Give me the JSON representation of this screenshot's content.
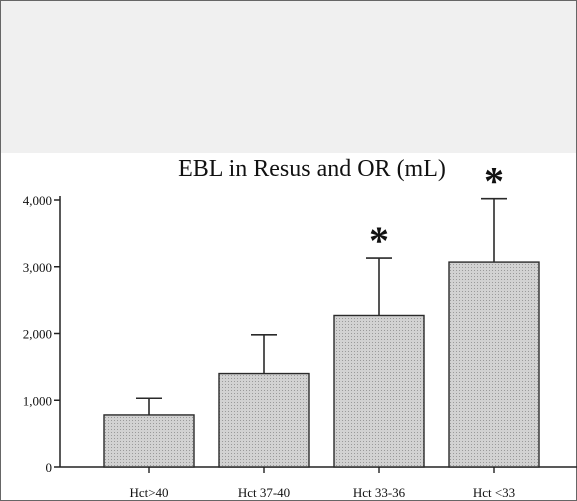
{
  "chart_data": {
    "type": "bar",
    "title": "EBL in Resus and OR (mL)",
    "xlabel": "",
    "ylabel": "",
    "categories": [
      "Hct>40",
      "Hct 37-40",
      "Hct 33-36",
      "Hct <33"
    ],
    "values": [
      780,
      1400,
      2270,
      3070
    ],
    "error_upper": [
      1030,
      1980,
      3130,
      4020
    ],
    "significance": [
      false,
      false,
      true,
      true
    ],
    "significance_marker": "*",
    "yticks": [
      0,
      1000,
      2000,
      3000,
      4000
    ],
    "ytick_labels": [
      "0",
      "1,000",
      "2,000",
      "3,000",
      "4,000"
    ],
    "ylim": [
      0,
      4000
    ],
    "grid": false,
    "colors": {
      "bar_fill": "#c4c4c4",
      "bar_stroke": "#2a2a2a",
      "header_band": "#f0f0f0",
      "frame": "#666666"
    }
  }
}
